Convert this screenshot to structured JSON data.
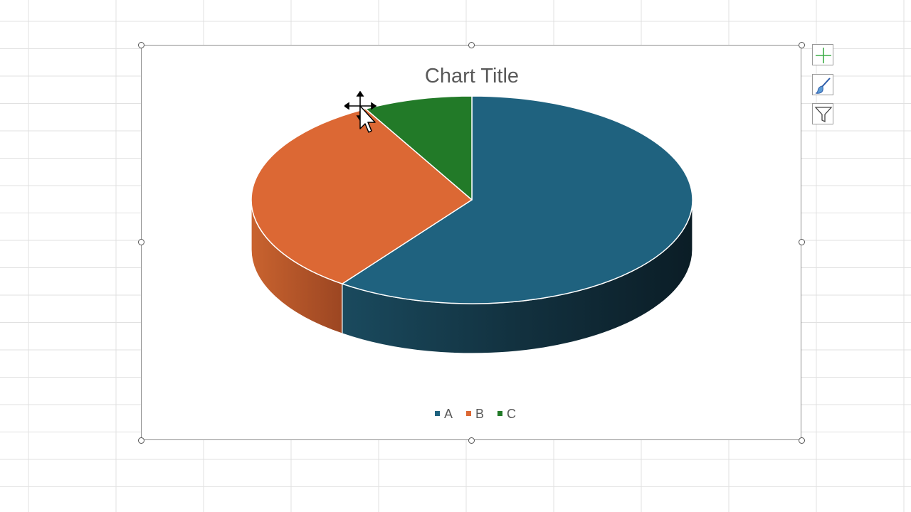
{
  "chart_data": {
    "type": "pie",
    "style": "3d",
    "title": "Chart Title",
    "categories": [
      "A",
      "B",
      "C"
    ],
    "values": [
      60,
      32,
      8
    ],
    "colors": [
      "#1f627f",
      "#dc6834",
      "#227a28"
    ],
    "legend": "bottom"
  },
  "toolbar": {
    "add_icon": "plus-icon",
    "style_icon": "paintbrush-icon",
    "filter_icon": "funnel-icon"
  },
  "cursor_icon": "move-pointer-icon"
}
